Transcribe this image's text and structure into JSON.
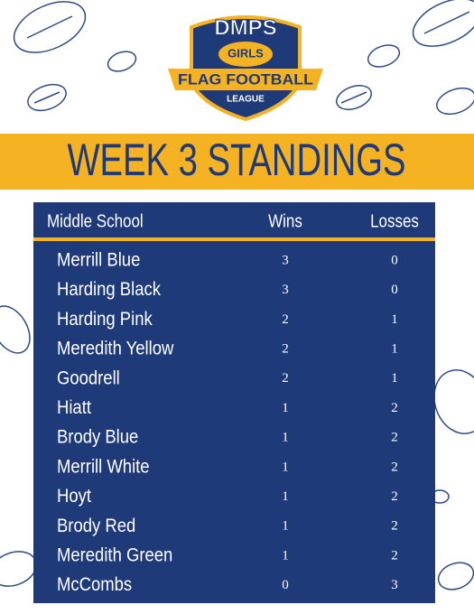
{
  "logo": {
    "top": "DMPS",
    "badge": "GIRLS",
    "banner": "FLAG FOOTBALL",
    "bottom": "LEAGUE"
  },
  "title": "WEEK 3 STANDINGS",
  "table": {
    "header": [
      "Middle School",
      "Wins",
      "Losses"
    ],
    "rows": [
      [
        "Merrill Blue",
        3,
        0
      ],
      [
        "Harding Black",
        3,
        0
      ],
      [
        "Harding Pink",
        2,
        1
      ],
      [
        "Meredith Yellow",
        2,
        1
      ],
      [
        "Goodrell",
        2,
        1
      ],
      [
        "Hiatt",
        1,
        2
      ],
      [
        "Brody Blue",
        1,
        2
      ],
      [
        "Merrill White",
        1,
        2
      ],
      [
        "Hoyt",
        1,
        2
      ],
      [
        "Brody Red",
        1,
        2
      ],
      [
        "Meredith Green",
        1,
        2
      ],
      [
        "McCombs",
        0,
        3
      ]
    ]
  }
}
